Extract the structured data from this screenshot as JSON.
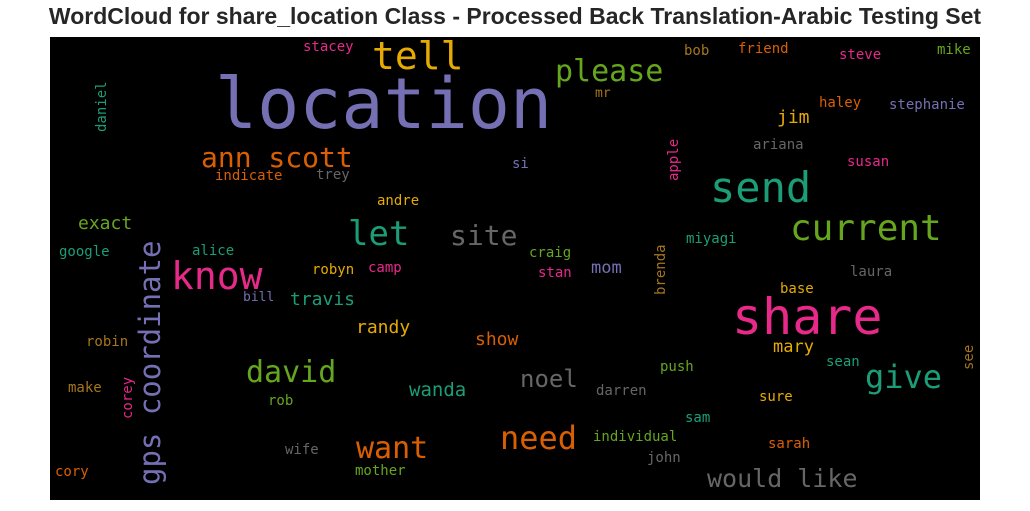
{
  "title": "WordCloud for share_location Class - Processed Back Translation-Arabic Testing Set",
  "colors": {
    "purple": "#7570b3",
    "orange": "#d95f02",
    "green": "#1b9e77",
    "pink": "#e7298a",
    "lime": "#66a61e",
    "gold": "#e6ab02",
    "brown": "#a6761d",
    "gray": "#666666"
  },
  "words": {
    "location": "location",
    "share": "share",
    "send": "send",
    "know": "know",
    "tell": "tell",
    "current": "current",
    "please": "please",
    "gps_coordinate": "gps coordinate",
    "ann_scott": "ann scott",
    "let": "let",
    "site": "site",
    "david": "david",
    "give": "give",
    "need": "need",
    "want": "want",
    "would_like": "would like",
    "noel": "noel",
    "exact": "exact",
    "travis": "travis",
    "randy": "randy",
    "wanda": "wanda",
    "show": "show",
    "mary": "mary",
    "jim": "jim",
    "mom": "mom",
    "stacey": "stacey",
    "bob": "bob",
    "friend": "friend",
    "steve": "steve",
    "mike": "mike",
    "mr": "mr",
    "daniel": "daniel",
    "haley": "haley",
    "stephanie": "stephanie",
    "ariana": "ariana",
    "susan": "susan",
    "si": "si",
    "trey": "trey",
    "indicate": "indicate",
    "apple": "apple",
    "andre": "andre",
    "google": "google",
    "alice": "alice",
    "craig": "craig",
    "miyagi": "miyagi",
    "brenda": "brenda",
    "robyn": "robyn",
    "camp": "camp",
    "stan": "stan",
    "laura": "laura",
    "bill": "bill",
    "base": "base",
    "robin": "robin",
    "see": "see",
    "sean": "sean",
    "make": "make",
    "corey": "corey",
    "push": "push",
    "darren": "darren",
    "rob": "rob",
    "sure": "sure",
    "sam": "sam",
    "individual": "individual",
    "wife": "wife",
    "sarah": "sarah",
    "john": "john",
    "cory": "cory",
    "mother": "mother"
  }
}
